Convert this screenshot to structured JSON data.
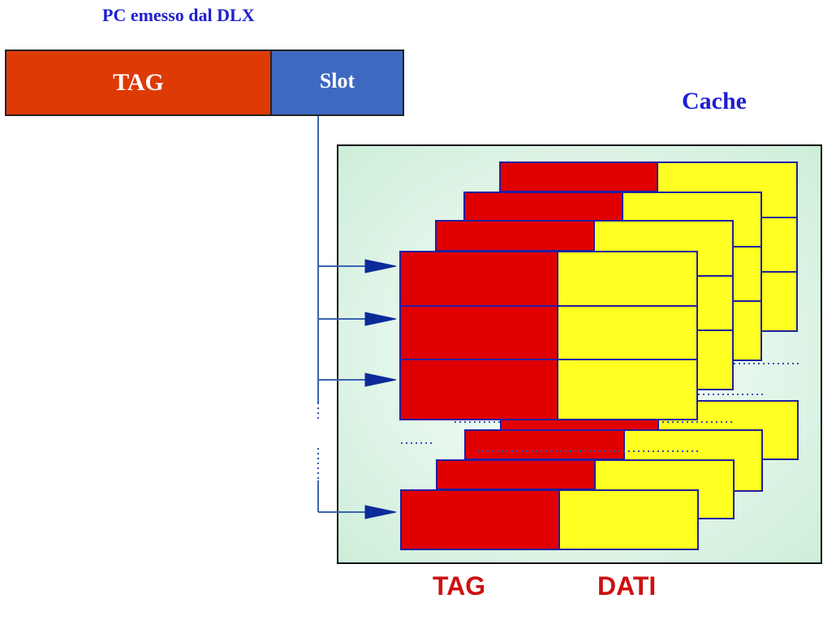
{
  "header": {
    "pc_title": "PC emesso dal DLX"
  },
  "address": {
    "tag_label": "TAG",
    "slot_label": "Slot"
  },
  "cache": {
    "title": "Cache"
  },
  "columns": {
    "tag_label": "TAG",
    "data_label": "DATI"
  },
  "colors": {
    "tag_field": "#de3a06",
    "slot_field": "#3d69c1",
    "cache_tag": "#e00000",
    "cache_data": "#ffff22",
    "line": "#3a63b0",
    "border": "#2020a0",
    "title": "#1f1fd0",
    "column_label": "#cc1111"
  },
  "diagram": {
    "top_stack_rows": 3,
    "bottom_stack_rows": 1
  }
}
